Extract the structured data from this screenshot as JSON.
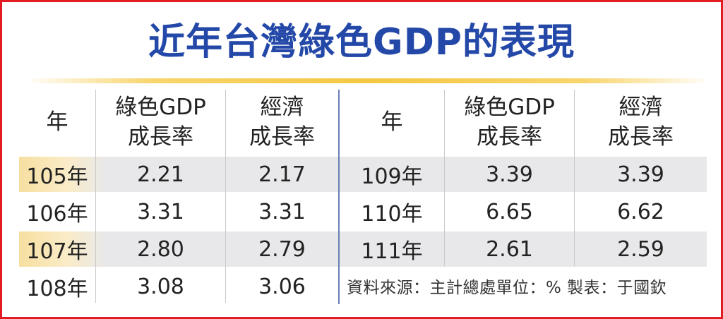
{
  "title": "近年台灣綠色GDP的表現",
  "colors": {
    "frame": "#e31b23",
    "title": "#2348a8",
    "title_rule": "#f4c842",
    "row_stripe": "#e8e8ea",
    "year_highlight": "#f7dfa0",
    "center_divider": "#6a7fb8"
  },
  "chart_data": {
    "type": "table",
    "title": "近年台灣綠色GDP的表現",
    "columns": [
      {
        "line1": "年",
        "line2": ""
      },
      {
        "line1": "綠色GDP",
        "line2": "成長率"
      },
      {
        "line1": "經濟",
        "line2": "成長率"
      }
    ],
    "rows": [
      {
        "year": "105年",
        "green_gdp_growth": "2.21",
        "economic_growth": "2.17"
      },
      {
        "year": "106年",
        "green_gdp_growth": "3.31",
        "economic_growth": "3.31"
      },
      {
        "year": "107年",
        "green_gdp_growth": "2.80",
        "economic_growth": "2.79"
      },
      {
        "year": "108年",
        "green_gdp_growth": "3.08",
        "economic_growth": "3.06"
      },
      {
        "year": "109年",
        "green_gdp_growth": "3.39",
        "economic_growth": "3.39"
      },
      {
        "year": "110年",
        "green_gdp_growth": "6.65",
        "economic_growth": "6.62"
      },
      {
        "year": "111年",
        "green_gdp_growth": "2.61",
        "economic_growth": "2.59"
      }
    ],
    "source_note": "資料來源：主計總處單位：%  製表：于國欽"
  }
}
